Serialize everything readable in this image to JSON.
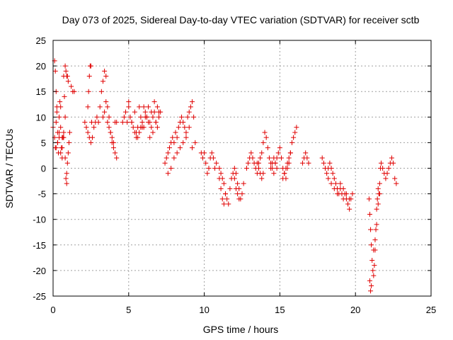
{
  "chart_data": {
    "type": "scatter",
    "title": "Day 073 of 2025, Sidereal Day-to-day VTEC variation (SDTVAR) for receiver sctb",
    "xlabel": "GPS time / hours",
    "ylabel": "SDTVAR / TECUs",
    "xlim": [
      0,
      25
    ],
    "ylim": [
      -25,
      25
    ],
    "xticks": [
      0,
      5,
      10,
      15,
      20,
      25
    ],
    "yticks": [
      -25,
      -20,
      -15,
      -10,
      -5,
      0,
      5,
      10,
      15,
      20,
      25
    ],
    "grid": true,
    "marker": "+",
    "color": "#e00000",
    "series": [
      {
        "name": "SDTVAR",
        "x": [
          0.0,
          0.1,
          0.15,
          0.2,
          0.25,
          0.3,
          0.35,
          0.4,
          0.45,
          0.5,
          0.55,
          0.6,
          0.65,
          0.7,
          0.75,
          0.8,
          0.85,
          0.9,
          0.95,
          1.0,
          1.05,
          1.1,
          1.2,
          1.3,
          1.4,
          0.1,
          0.15,
          0.2,
          0.25,
          0.3,
          0.4,
          0.5,
          0.6,
          0.7,
          0.8,
          0.85,
          0.9,
          0.95,
          1.0,
          0.2,
          0.3,
          0.4,
          0.5,
          0.6,
          0.7,
          0.8,
          0.9,
          2.1,
          2.2,
          2.3,
          2.4,
          2.5,
          2.3,
          2.35,
          2.4,
          2.45,
          2.5,
          2.55,
          2.6,
          2.7,
          2.8,
          2.9,
          3.0,
          3.1,
          3.2,
          3.3,
          3.4,
          3.5,
          3.6,
          3.7,
          3.8,
          3.9,
          4.0,
          4.1,
          4.2,
          3.3,
          3.4,
          3.5,
          3.6,
          3.7,
          3.8,
          3.9,
          4.0,
          4.1,
          4.2,
          4.6,
          4.7,
          4.8,
          4.9,
          5.0,
          5.1,
          5.2,
          5.3,
          5.4,
          5.5,
          5.6,
          5.7,
          5.8,
          5.9,
          6.0,
          6.1,
          6.2,
          6.3,
          6.4,
          6.5,
          6.6,
          6.7,
          6.8,
          6.9,
          7.0,
          7.1,
          5.0,
          5.2,
          5.4,
          5.6,
          5.8,
          6.0,
          6.2,
          6.4,
          6.6,
          6.8,
          7.0,
          5.5,
          5.7,
          5.9,
          6.1,
          6.3,
          6.5,
          6.7,
          6.9,
          7.4,
          7.5,
          7.6,
          7.7,
          7.8,
          7.9,
          8.0,
          8.1,
          8.2,
          8.3,
          8.4,
          8.5,
          8.6,
          8.7,
          8.8,
          8.9,
          9.0,
          9.1,
          9.2,
          9.3,
          7.6,
          7.8,
          8.0,
          8.2,
          8.4,
          8.6,
          8.8,
          9.0,
          9.2,
          9.4,
          9.8,
          9.9,
          10.0,
          10.1,
          10.2,
          10.3,
          10.4,
          10.5,
          10.6,
          10.7,
          10.8,
          11.0,
          11.1,
          11.2,
          11.3,
          11.4,
          11.5,
          11.6,
          11.7,
          11.8,
          11.9,
          12.0,
          12.1,
          12.2,
          12.3,
          12.4,
          12.5,
          12.6,
          11.0,
          11.1,
          11.2,
          11.3,
          11.4,
          12.0,
          12.1,
          12.2,
          12.3,
          12.8,
          12.9,
          13.0,
          13.1,
          13.2,
          13.3,
          13.4,
          13.5,
          13.6,
          13.7,
          13.8,
          13.9,
          14.0,
          14.1,
          14.2,
          14.3,
          14.4,
          14.5,
          14.6,
          14.7,
          14.8,
          14.9,
          15.0,
          15.1,
          15.2,
          15.3,
          15.4,
          15.5,
          15.6,
          15.7,
          15.8,
          15.9,
          16.0,
          16.1,
          13.5,
          13.6,
          13.7,
          13.8,
          13.9,
          14.4,
          14.5,
          14.6,
          14.7,
          14.8,
          15.2,
          15.3,
          15.4,
          15.5,
          15.6,
          15.7,
          16.5,
          16.6,
          16.7,
          16.8,
          16.9,
          17.8,
          17.9,
          18.0,
          18.1,
          18.2,
          18.3,
          18.4,
          18.5,
          18.6,
          18.7,
          18.8,
          18.9,
          19.0,
          19.1,
          19.2,
          19.3,
          19.4,
          19.5,
          19.6,
          19.7,
          19.8,
          18.2,
          18.4,
          18.6,
          18.8,
          19.0,
          19.2,
          19.4,
          19.6,
          20.9,
          20.95,
          21.0,
          21.05,
          21.1,
          21.15,
          21.2,
          21.25,
          21.3,
          21.35,
          21.4,
          21.45,
          21.5,
          21.55,
          21.6,
          21.65,
          21.7,
          21.8,
          21.9,
          22.0,
          22.1,
          22.2,
          22.3,
          22.4,
          22.5,
          22.6,
          22.7,
          20.95,
          21.0,
          21.05,
          21.2,
          21.3,
          21.4,
          21.5,
          21.6
        ],
        "y": [
          8,
          6,
          4,
          9,
          12,
          5,
          3,
          6,
          13,
          8,
          4,
          2,
          6,
          7,
          14,
          10,
          -2,
          -3,
          1,
          3,
          5,
          7,
          16,
          15,
          15,
          21,
          19,
          15,
          11,
          7,
          10,
          12,
          6,
          18,
          20,
          19,
          18,
          18,
          17,
          4,
          5,
          7,
          3,
          4,
          6,
          2,
          -1,
          9,
          8,
          7,
          6,
          5,
          12,
          15,
          18,
          20,
          20,
          9,
          6,
          8,
          9,
          10,
          9,
          12,
          15,
          17,
          19,
          18,
          12,
          10,
          7,
          5,
          4,
          3,
          2,
          10,
          11,
          13,
          9,
          8,
          7,
          6,
          5,
          9,
          9,
          9,
          10,
          11,
          9,
          12,
          10,
          9,
          8,
          11,
          7,
          8,
          12,
          10,
          9,
          8,
          11,
          10,
          12,
          9,
          8,
          10,
          11,
          9,
          8,
          10,
          11,
          13,
          9,
          7,
          6,
          8,
          12,
          10,
          6,
          7,
          9,
          11,
          6,
          7,
          8,
          10,
          9,
          11,
          13,
          12,
          1,
          2,
          3,
          4,
          5,
          6,
          5,
          7,
          6,
          8,
          9,
          10,
          9,
          8,
          7,
          10,
          11,
          12,
          13,
          10,
          -1,
          0,
          2,
          3,
          4,
          5,
          6,
          8,
          4,
          5,
          3,
          2,
          3,
          1,
          -1,
          0,
          2,
          3,
          2,
          0,
          1,
          0,
          -1,
          -2,
          -3,
          -5,
          -6,
          -7,
          -4,
          -2,
          -1,
          0,
          -1,
          -3,
          -4,
          -6,
          -5,
          -3,
          -2,
          -4,
          -6,
          -7,
          -5,
          -2,
          -4,
          -5,
          -6,
          0,
          1,
          2,
          3,
          2,
          1,
          0,
          -1,
          1,
          2,
          3,
          5,
          7,
          6,
          4,
          2,
          1,
          0,
          -1,
          1,
          2,
          3,
          4,
          2,
          0,
          -1,
          -2,
          0,
          1,
          3,
          5,
          6,
          7,
          8,
          1,
          0,
          -1,
          -2,
          -1,
          0,
          1,
          2,
          1,
          0,
          -2,
          -1,
          0,
          1,
          2,
          3,
          1,
          2,
          3,
          2,
          1,
          2,
          1,
          0,
          -1,
          0,
          1,
          0,
          -1,
          -2,
          -3,
          -4,
          -5,
          -4,
          -5,
          -6,
          -5,
          -6,
          -7,
          -8,
          -6,
          -5,
          -2,
          -3,
          -4,
          -5,
          -3,
          -4,
          -5,
          -6,
          -6,
          -9,
          -12,
          -15,
          -18,
          -20,
          -21,
          -19,
          -16,
          -12,
          -8,
          -6,
          -4,
          -5,
          -3,
          0,
          1,
          0,
          -1,
          -2,
          -1,
          0,
          1,
          2,
          1,
          -2,
          -3,
          -22,
          -24,
          -23,
          -16,
          -14,
          -11,
          -7,
          -5
        ]
      }
    ]
  }
}
